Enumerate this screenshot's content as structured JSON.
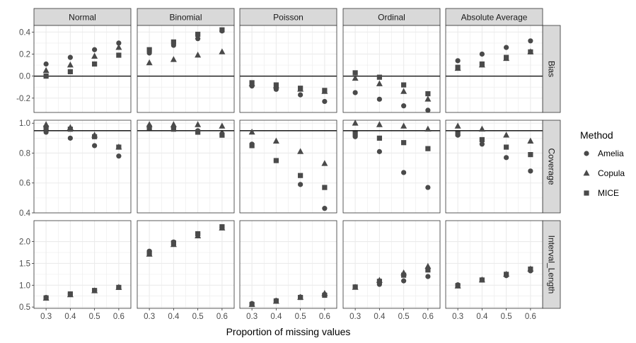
{
  "chart_data": {
    "type": "scatter",
    "xlabel": "Proportion of missing values",
    "x": [
      0.3,
      0.4,
      0.5,
      0.6
    ],
    "x_tick_labels": [
      "0.3",
      "0.4",
      "0.5",
      "0.6"
    ],
    "facet_columns": [
      "Normal",
      "Binomial",
      "Poisson",
      "Ordinal",
      "Absolute Average"
    ],
    "facet_rows": [
      {
        "name": "Bias",
        "ylim": [
          -0.33,
          0.46
        ],
        "yticks": [
          -0.2,
          0.0,
          0.2,
          0.4
        ],
        "ytick_labels": [
          "-0.2",
          "0.0",
          "0.2",
          "0.4"
        ],
        "hline": 0
      },
      {
        "name": "Coverage",
        "ylim": [
          0.4,
          1.02
        ],
        "yticks": [
          0.4,
          0.6,
          0.8,
          1.0
        ],
        "ytick_labels": [
          "0.4",
          "0.6",
          "0.8",
          "1.0"
        ],
        "hline": 0.95
      },
      {
        "name": "Interval_Length",
        "ylim": [
          0.47,
          2.48
        ],
        "yticks": [
          0.5,
          1.0,
          1.5,
          2.0
        ],
        "ytick_labels": [
          "0.5",
          "1.0",
          "1.5",
          "2.0"
        ],
        "hline": null
      }
    ],
    "legend": {
      "title": "Method",
      "position": "right",
      "entries": [
        "Amelia",
        "Copula",
        "MICE"
      ],
      "shapes": [
        "circle",
        "triangle",
        "square"
      ]
    },
    "grid": true,
    "colors": {
      "points": "#4a4a4a",
      "strip_bg": "#d9d9d9",
      "grid": "#ebebeb",
      "reference_line": "#000000"
    },
    "series": [
      {
        "name": "Amelia",
        "shape": "circle",
        "values": {
          "Bias": {
            "Normal": [
              0.11,
              0.17,
              0.24,
              0.3
            ],
            "Binomial": [
              0.21,
              0.28,
              0.34,
              0.41
            ],
            "Poisson": [
              -0.09,
              -0.12,
              -0.17,
              -0.23
            ],
            "Ordinal": [
              -0.15,
              -0.21,
              -0.27,
              -0.31
            ],
            "Absolute Average": [
              0.14,
              0.2,
              0.26,
              0.32
            ]
          },
          "Coverage": {
            "Normal": [
              0.94,
              0.9,
              0.85,
              0.78
            ],
            "Binomial": [
              0.98,
              0.97,
              0.95,
              0.93
            ],
            "Poisson": [
              0.86,
              0.75,
              0.59,
              0.43
            ],
            "Ordinal": [
              0.91,
              0.81,
              0.67,
              0.57
            ],
            "Absolute Average": [
              0.92,
              0.86,
              0.77,
              0.68
            ]
          },
          "Interval_Length": {
            "Normal": [
              0.72,
              0.8,
              0.88,
              0.95
            ],
            "Binomial": [
              1.78,
              1.99,
              2.18,
              2.33
            ],
            "Poisson": [
              0.58,
              0.65,
              0.73,
              0.79
            ],
            "Ordinal": [
              0.96,
              1.02,
              1.1,
              1.2
            ],
            "Absolute Average": [
              1.01,
              1.12,
              1.22,
              1.33
            ]
          }
        }
      },
      {
        "name": "Copula",
        "shape": "triangle",
        "values": {
          "Bias": {
            "Normal": [
              0.05,
              0.1,
              0.18,
              0.26
            ],
            "Binomial": [
              0.12,
              0.15,
              0.19,
              0.22
            ],
            "Poisson": [
              -0.07,
              -0.09,
              -0.12,
              -0.14
            ],
            "Ordinal": [
              -0.02,
              -0.07,
              -0.14,
              -0.21
            ],
            "Absolute Average": [
              0.07,
              0.1,
              0.16,
              0.22
            ]
          },
          "Coverage": {
            "Normal": [
              0.99,
              0.97,
              0.92,
              0.84
            ],
            "Binomial": [
              0.99,
              0.99,
              0.99,
              0.98
            ],
            "Poisson": [
              0.94,
              0.88,
              0.81,
              0.73
            ],
            "Ordinal": [
              1.0,
              0.99,
              0.98,
              0.96
            ],
            "Absolute Average": [
              0.98,
              0.96,
              0.92,
              0.88
            ]
          },
          "Interval_Length": {
            "Normal": [
              0.7,
              0.78,
              0.87,
              0.95
            ],
            "Binomial": [
              1.71,
              1.93,
              2.13,
              2.31
            ],
            "Poisson": [
              0.56,
              0.63,
              0.72,
              0.81
            ],
            "Ordinal": [
              0.95,
              1.11,
              1.28,
              1.43
            ],
            "Absolute Average": [
              0.98,
              1.12,
              1.25,
              1.37
            ]
          }
        }
      },
      {
        "name": "MICE",
        "shape": "square",
        "values": {
          "Bias": {
            "Normal": [
              0.0,
              0.04,
              0.11,
              0.19
            ],
            "Binomial": [
              0.24,
              0.31,
              0.38,
              0.42
            ],
            "Poisson": [
              -0.06,
              -0.08,
              -0.11,
              -0.13
            ],
            "Ordinal": [
              0.03,
              -0.01,
              -0.08,
              -0.16
            ],
            "Absolute Average": [
              0.08,
              0.11,
              0.17,
              0.22
            ]
          },
          "Coverage": {
            "Normal": [
              0.97,
              0.96,
              0.91,
              0.84
            ],
            "Binomial": [
              0.97,
              0.96,
              0.94,
              0.92
            ],
            "Poisson": [
              0.85,
              0.75,
              0.65,
              0.57
            ],
            "Ordinal": [
              0.93,
              0.9,
              0.87,
              0.83
            ],
            "Absolute Average": [
              0.93,
              0.89,
              0.84,
              0.79
            ]
          },
          "Interval_Length": {
            "Normal": [
              0.71,
              0.8,
              0.88,
              0.95
            ],
            "Binomial": [
              1.74,
              1.97,
              2.18,
              2.34
            ],
            "Poisson": [
              0.56,
              0.64,
              0.72,
              0.77
            ],
            "Ordinal": [
              0.96,
              1.09,
              1.23,
              1.35
            ],
            "Absolute Average": [
              0.99,
              1.12,
              1.25,
              1.37
            ]
          }
        }
      }
    ]
  }
}
